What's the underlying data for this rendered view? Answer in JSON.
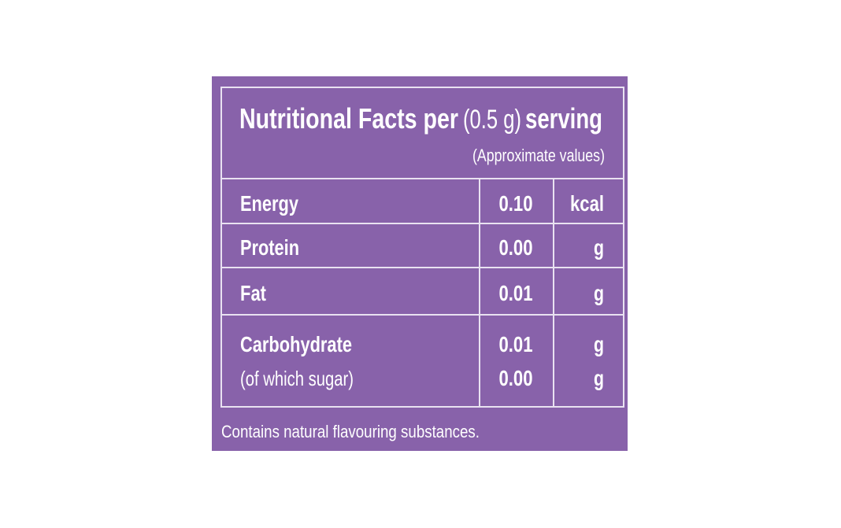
{
  "header": {
    "title_start": "Nutritional Facts per",
    "serving_size": "(0.5 g)",
    "title_end": "serving",
    "subtitle": "(Approximate values)"
  },
  "table": {
    "rows": [
      {
        "label": "Energy",
        "value": "0.10",
        "unit": "kcal"
      },
      {
        "label": "Protein",
        "value": "0.00",
        "unit": "g"
      },
      {
        "label": "Fat",
        "value": "0.01",
        "unit": "g"
      },
      {
        "label": "Carbohydrate",
        "value": "0.01",
        "unit": "g"
      },
      {
        "label": "(of which sugar)",
        "value": "0.00",
        "unit": "g"
      }
    ]
  },
  "footer": {
    "note": "Contains natural flavouring substances."
  }
}
